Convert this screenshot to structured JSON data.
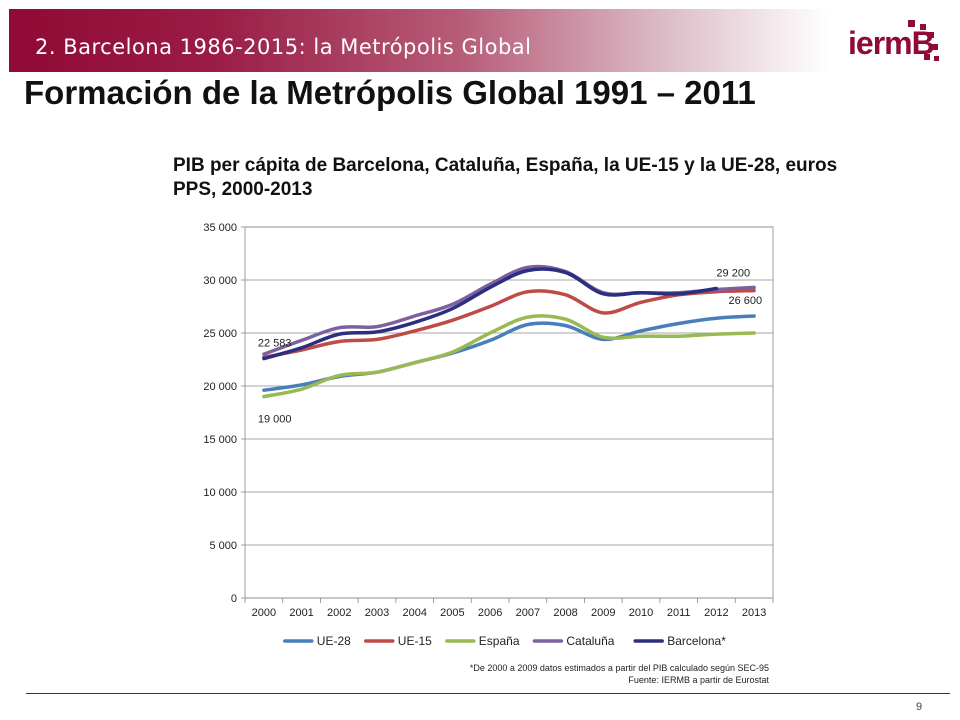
{
  "header": {
    "section_label": "2. Barcelona 1986-2015: la Metrópolis Global",
    "logo_text": "iermB"
  },
  "slide_title": "Formación de la Metrópolis Global 1991 – 2011",
  "chart_data": {
    "type": "line",
    "title": "PIB per cápita de Barcelona, Cataluña, España, la UE-15 y la UE-28, euros PPS, 2000-2013",
    "xlabel": "",
    "ylabel": "",
    "x": [
      "2000",
      "2001",
      "2002",
      "2003",
      "2004",
      "2005",
      "2006",
      "2007",
      "2008",
      "2009",
      "2010",
      "2011",
      "2012",
      "2013"
    ],
    "y_ticks": [
      "0",
      "5 000",
      "10 000",
      "15 000",
      "20 000",
      "25 000",
      "30 000",
      "35 000"
    ],
    "ylim": [
      0,
      35000
    ],
    "grid": true,
    "legend_position": "bottom",
    "series": [
      {
        "name": "UE-28",
        "color": "#4a7ebb",
        "values": [
          19600,
          20100,
          20900,
          21300,
          22200,
          23100,
          24300,
          25800,
          25700,
          24400,
          25200,
          25900,
          26400,
          26600
        ]
      },
      {
        "name": "UE-15",
        "color": "#be4b48",
        "values": [
          22700,
          23400,
          24200,
          24400,
          25200,
          26200,
          27500,
          28900,
          28600,
          26900,
          27900,
          28600,
          28900,
          29000
        ]
      },
      {
        "name": "España",
        "color": "#98b954",
        "values": [
          19000,
          19700,
          21000,
          21300,
          22200,
          23200,
          25000,
          26500,
          26300,
          24600,
          24700,
          24700,
          24900,
          25000
        ]
      },
      {
        "name": "Cataluña",
        "color": "#7d60a0",
        "values": [
          23000,
          24300,
          25500,
          25600,
          26600,
          27700,
          29600,
          31200,
          30800,
          28800,
          28800,
          28800,
          29100,
          29300
        ]
      },
      {
        "name": "Barcelona*",
        "color": "#2c2f7f",
        "values": [
          22583,
          23600,
          24900,
          25100,
          26000,
          27300,
          29300,
          30900,
          30700,
          28700,
          28800,
          28700,
          29200,
          null
        ]
      }
    ],
    "annotations": [
      {
        "text": "22 583",
        "series": "Barcelona*",
        "x": "2000"
      },
      {
        "text": "19 000",
        "series": "España",
        "x": "2000"
      },
      {
        "text": "29 200",
        "series": "Barcelona*",
        "x": "2012"
      },
      {
        "text": "26 600",
        "series": "UE-28",
        "x": "2013"
      }
    ]
  },
  "footnote": {
    "line1": "*De 2000 a 2009 datos estimados a partir del PIB calculado según SEC-95",
    "line2": "Fuente: IERMB a partir de Eurostat"
  },
  "page_number": "9"
}
